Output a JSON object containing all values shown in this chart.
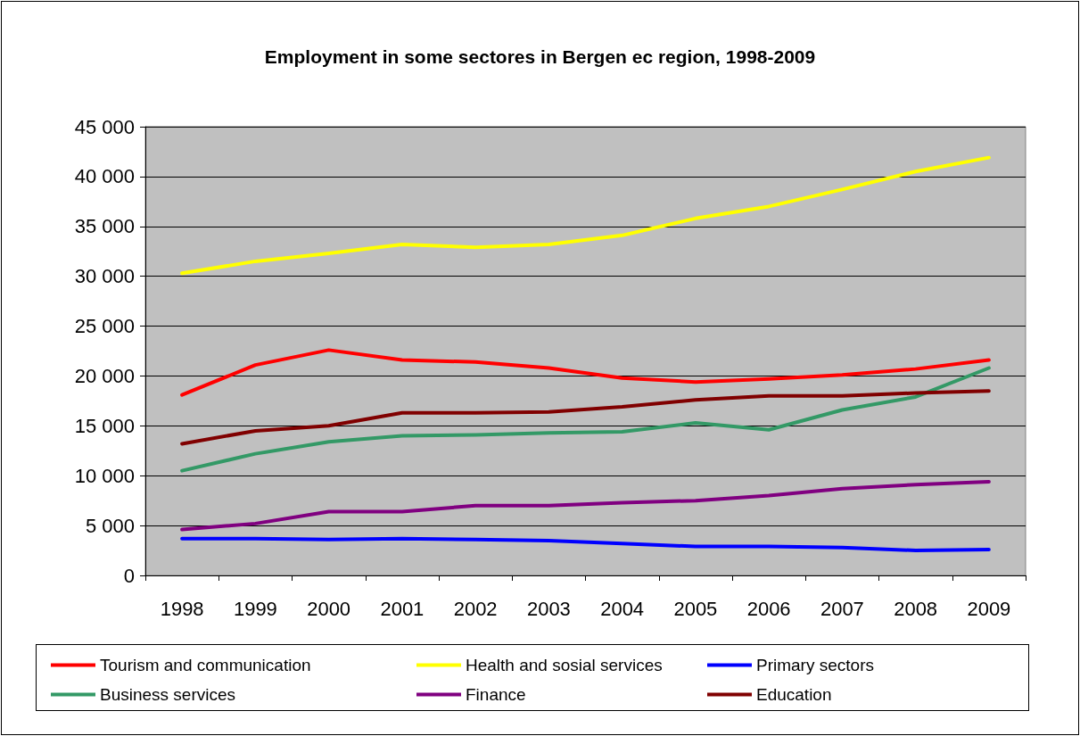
{
  "chart_data": {
    "type": "line",
    "title": "Employment in some sectores in Bergen ec region, 1998-2009",
    "categories": [
      "1998",
      "1999",
      "2000",
      "2001",
      "2002",
      "2003",
      "2004",
      "2005",
      "2006",
      "2007",
      "2008",
      "2009"
    ],
    "series": [
      {
        "name": "Tourism and communication",
        "color": "#ff0000",
        "values": [
          18100,
          21100,
          22600,
          21600,
          21400,
          20800,
          19800,
          19400,
          19700,
          20100,
          20700,
          21600
        ]
      },
      {
        "name": "Health and sosial services",
        "color": "#ffff00",
        "values": [
          30300,
          31500,
          32300,
          33200,
          32900,
          33200,
          34100,
          35800,
          37000,
          38700,
          40500,
          41900
        ]
      },
      {
        "name": "Primary sectors",
        "color": "#0000ff",
        "values": [
          3700,
          3700,
          3600,
          3700,
          3600,
          3500,
          3200,
          2900,
          2900,
          2800,
          2500,
          2600
        ]
      },
      {
        "name": "Business services",
        "color": "#339966",
        "values": [
          10500,
          12200,
          13400,
          14000,
          14100,
          14300,
          14400,
          15300,
          14600,
          16600,
          17900,
          20800
        ]
      },
      {
        "name": "Finance",
        "color": "#800080",
        "values": [
          4600,
          5200,
          6400,
          6400,
          7000,
          7000,
          7300,
          7500,
          8000,
          8700,
          9100,
          9400
        ]
      },
      {
        "name": "Education",
        "color": "#800000",
        "values": [
          13200,
          14500,
          15000,
          16300,
          16300,
          16400,
          16900,
          17600,
          18000,
          18000,
          18300,
          18500
        ]
      }
    ],
    "ylim": [
      0,
      45000
    ],
    "yticks": [
      {
        "value": 0,
        "label": "0"
      },
      {
        "value": 5000,
        "label": "5 000"
      },
      {
        "value": 10000,
        "label": "10 000"
      },
      {
        "value": 15000,
        "label": "15 000"
      },
      {
        "value": 20000,
        "label": "20 000"
      },
      {
        "value": 25000,
        "label": "25 000"
      },
      {
        "value": 30000,
        "label": "30 000"
      },
      {
        "value": 35000,
        "label": "35 000"
      },
      {
        "value": 40000,
        "label": "40 000"
      },
      {
        "value": 45000,
        "label": "45 000"
      }
    ],
    "grid": "y",
    "legend": "bottom",
    "marker": "none",
    "line_style": "solid"
  }
}
